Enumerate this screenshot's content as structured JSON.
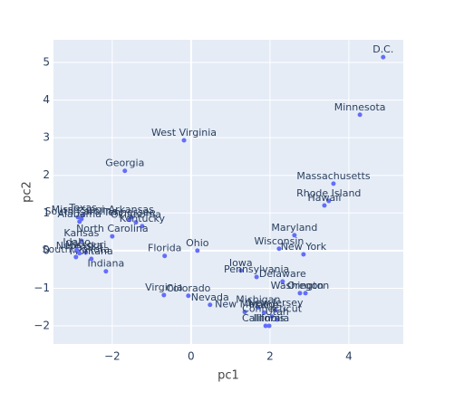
{
  "chart_data": {
    "type": "scatter",
    "x_label": "pc1",
    "y_label": "pc2",
    "xlim": [
      -3.49,
      5.38
    ],
    "ylim": [
      -2.48,
      5.6
    ],
    "xticks": [
      {
        "value": -2,
        "label": "−2"
      },
      0,
      2,
      4
    ],
    "yticks": [
      {
        "value": -2,
        "label": "−2"
      },
      {
        "value": -1,
        "label": "−1"
      },
      0,
      1,
      2,
      3,
      4,
      5
    ],
    "grid": true,
    "series": [
      {
        "color": "#636efa",
        "labels": [
          "D.C.",
          "Minnesota",
          "West Virginia",
          "Georgia",
          "Massachusetts",
          "Rhode Island",
          "Hawaii",
          "Maryland",
          "Wisconsin",
          "New York",
          "Ohio",
          "Florida",
          "Iowa",
          "Pennsylvania",
          "Delaware",
          "Washington",
          "Oregon",
          "Virginia",
          "Colorado",
          "Nevada",
          "New Mexico",
          "Michigan",
          "New Jersey",
          "Maine",
          "Connecticut",
          "Utah",
          "Illinois",
          "California",
          "Arkansas",
          "Tennessee",
          "Oklahoma",
          "Kentucky",
          "Texas",
          "South Carolina",
          "Mississippi",
          "Alabama",
          "North Carolina",
          "Kansas",
          "Missouri",
          "Montana",
          "Indiana",
          "South Dakota",
          "Nebraska",
          "Idaho"
        ],
        "x": [
          4.87,
          4.28,
          -0.18,
          -1.68,
          3.61,
          3.49,
          3.38,
          2.62,
          2.23,
          2.85,
          0.16,
          -0.67,
          1.26,
          1.66,
          2.32,
          2.76,
          2.9,
          -0.69,
          -0.07,
          0.48,
          1.36,
          1.7,
          2.14,
          1.85,
          2.05,
          2.18,
          1.98,
          1.89,
          -1.52,
          -1.56,
          -1.4,
          -1.24,
          -2.74,
          -2.78,
          -2.87,
          -2.83,
          -2.0,
          -2.78,
          -2.67,
          -2.53,
          -2.16,
          -2.92,
          -2.83,
          -2.9
        ],
        "values": [
          5.14,
          3.61,
          2.93,
          2.12,
          1.78,
          1.32,
          1.2,
          0.41,
          0.05,
          -0.1,
          0.0,
          -0.14,
          -0.53,
          -0.7,
          -0.82,
          -1.13,
          -1.13,
          -1.18,
          -1.2,
          -1.44,
          -1.63,
          -1.51,
          -1.59,
          -1.65,
          -1.75,
          -1.83,
          -2.0,
          -2.0,
          0.89,
          0.82,
          0.75,
          0.65,
          0.94,
          0.84,
          0.89,
          0.77,
          0.38,
          0.26,
          -0.05,
          -0.22,
          -0.55,
          -0.17,
          -0.07,
          0.02
        ]
      }
    ]
  }
}
